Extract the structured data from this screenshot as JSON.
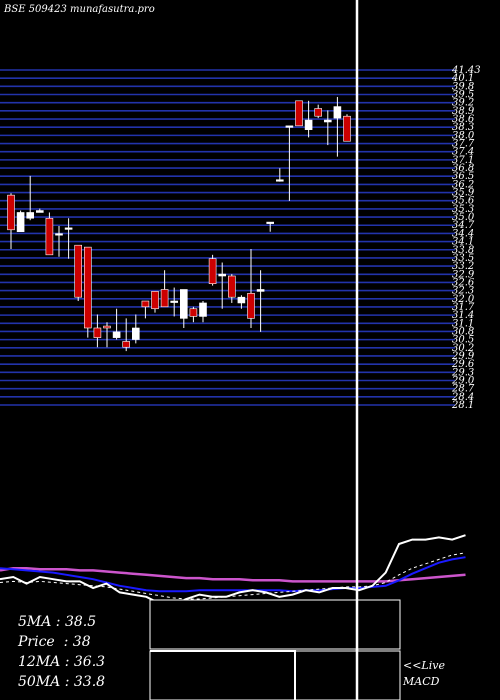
{
  "header": {
    "title": "BSE 509423 munafasutra.pro"
  },
  "stats": {
    "ma5": "5MA : 38.5",
    "price": "Price  : 38",
    "ma12": "12MA : 36.3",
    "ma50": "50MA : 33.8"
  },
  "macd_label": {
    "line1": "<<Live",
    "line2": "MACD"
  },
  "colors": {
    "up": "#ffffff",
    "down": "#cc0000",
    "grid": "#2233aa",
    "ma_short": "#ffffff",
    "ma_long": "#1a1aff",
    "ma_50": "#cc55cc"
  },
  "chart_data": {
    "type": "candlestick",
    "ylim": [
      24.0,
      41.4
    ],
    "price_labels": [
      "41.43",
      "40.1",
      "39.8",
      "39.5",
      "39.2",
      "38.9",
      "38.6",
      "38.3",
      "38.0",
      "37.7",
      "37.4",
      "37.1",
      "36.8",
      "36.5",
      "36.2",
      "35.9",
      "35.6",
      "35.3",
      "35.0",
      "34.7",
      "34.4",
      "34.1",
      "33.8",
      "33.5",
      "33.2",
      "32.9",
      "32.6",
      "32.3",
      "32.0",
      "31.7",
      "31.4",
      "31.1",
      "30.8",
      "30.5",
      "30.2",
      "29.9",
      "29.6",
      "29.3",
      "29.0",
      "28.7",
      "28.4",
      "28.1"
    ],
    "candles": [
      {
        "o": 34.9,
        "h": 35.0,
        "l": 32.1,
        "c": 33.1
      },
      {
        "o": 33.0,
        "h": 34.1,
        "l": 33.0,
        "c": 34.0
      },
      {
        "o": 33.7,
        "h": 35.9,
        "l": 33.6,
        "c": 34.0
      },
      {
        "o": 34.0,
        "h": 34.2,
        "l": 34.0,
        "c": 34.1
      },
      {
        "o": 33.7,
        "h": 34.0,
        "l": 31.8,
        "c": 31.8
      },
      {
        "o": 32.9,
        "h": 33.3,
        "l": 31.7,
        "c": 32.9
      },
      {
        "o": 33.2,
        "h": 33.7,
        "l": 31.6,
        "c": 33.2
      },
      {
        "o": 32.3,
        "h": 32.3,
        "l": 29.4,
        "c": 29.6
      },
      {
        "o": 32.2,
        "h": 32.2,
        "l": 27.5,
        "c": 28.0
      },
      {
        "o": 28.0,
        "h": 28.7,
        "l": 27.0,
        "c": 27.5
      },
      {
        "o": 28.1,
        "h": 28.3,
        "l": 27.0,
        "c": 28.0
      },
      {
        "o": 27.5,
        "h": 29.0,
        "l": 27.4,
        "c": 27.8
      },
      {
        "o": 27.3,
        "h": 28.5,
        "l": 26.8,
        "c": 27.0
      },
      {
        "o": 27.4,
        "h": 28.7,
        "l": 27.2,
        "c": 28.0
      },
      {
        "o": 29.4,
        "h": 29.4,
        "l": 28.5,
        "c": 29.1
      },
      {
        "o": 29.9,
        "h": 29.9,
        "l": 28.8,
        "c": 29.0
      },
      {
        "o": 30.0,
        "h": 31.0,
        "l": 29.1,
        "c": 29.1
      },
      {
        "o": 29.4,
        "h": 30.1,
        "l": 28.6,
        "c": 29.4
      },
      {
        "o": 28.5,
        "h": 30.0,
        "l": 28.0,
        "c": 30.0
      },
      {
        "o": 29.0,
        "h": 29.1,
        "l": 28.3,
        "c": 28.6
      },
      {
        "o": 28.6,
        "h": 29.4,
        "l": 28.3,
        "c": 29.3
      },
      {
        "o": 31.6,
        "h": 31.8,
        "l": 30.2,
        "c": 30.3
      },
      {
        "o": 30.7,
        "h": 31.4,
        "l": 29.0,
        "c": 30.8
      },
      {
        "o": 30.7,
        "h": 30.8,
        "l": 29.3,
        "c": 29.6
      },
      {
        "o": 29.3,
        "h": 29.7,
        "l": 29.0,
        "c": 29.6
      },
      {
        "o": 29.8,
        "h": 32.1,
        "l": 28.0,
        "c": 28.5
      },
      {
        "o": 29.9,
        "h": 31.0,
        "l": 27.8,
        "c": 30.0
      },
      {
        "o": 33.5,
        "h": 33.5,
        "l": 33.0,
        "c": 33.5
      },
      {
        "o": 35.7,
        "h": 36.3,
        "l": 35.6,
        "c": 35.7
      },
      {
        "o": 38.5,
        "h": 38.5,
        "l": 34.6,
        "c": 38.5
      },
      {
        "o": 39.8,
        "h": 39.8,
        "l": 38.5,
        "c": 38.5
      },
      {
        "o": 38.3,
        "h": 39.8,
        "l": 37.9,
        "c": 38.8
      },
      {
        "o": 39.4,
        "h": 39.6,
        "l": 38.9,
        "c": 39.0
      },
      {
        "o": 38.7,
        "h": 39.3,
        "l": 37.5,
        "c": 38.8
      },
      {
        "o": 38.9,
        "h": 40.0,
        "l": 36.9,
        "c": 39.5
      },
      {
        "o": 39.0,
        "h": 39.1,
        "l": 37.7,
        "c": 37.7
      }
    ],
    "indicator": {
      "ylim": [
        0,
        100
      ],
      "series": [
        {
          "values": [
            28,
            30,
            24,
            30,
            28,
            26,
            26,
            20,
            24,
            16,
            14,
            12,
            6,
            4,
            10,
            14,
            12,
            12,
            16,
            18,
            16,
            12,
            14,
            18,
            16,
            20,
            20,
            18,
            22,
            34,
            60,
            64,
            64,
            66,
            64,
            68
          ]
        },
        {
          "values": [
            25,
            26,
            25,
            26,
            25,
            24,
            23,
            22,
            21,
            19,
            17,
            15,
            13,
            11,
            10,
            10,
            11,
            12,
            13,
            14,
            15,
            16,
            17,
            18,
            19,
            20,
            21,
            21,
            22,
            25,
            32,
            38,
            42,
            46,
            50,
            52
          ]
        },
        {
          "values": [
            38,
            37,
            36,
            35,
            34,
            32,
            30,
            28,
            25,
            22,
            20,
            18,
            17,
            17,
            17,
            18,
            18,
            18,
            18,
            18,
            18,
            18,
            17,
            18,
            18,
            19,
            20,
            20,
            21,
            22,
            27,
            33,
            38,
            43,
            46,
            48
          ]
        },
        {
          "values": [
            36,
            38,
            38,
            37,
            37,
            37,
            36,
            36,
            35,
            34,
            33,
            32,
            31,
            30,
            29,
            29,
            28,
            28,
            28,
            27,
            27,
            27,
            26,
            26,
            26,
            26,
            26,
            26,
            26,
            26,
            27,
            28,
            29,
            30,
            31,
            32
          ]
        }
      ]
    }
  }
}
